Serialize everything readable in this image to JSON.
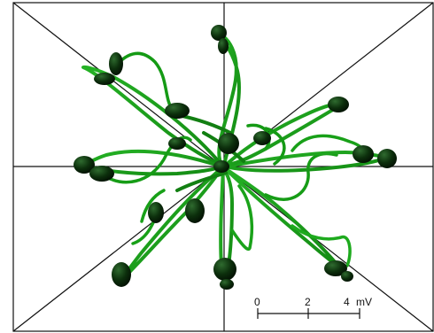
{
  "scale_bar": {
    "tick_0": "0",
    "tick_2": "2",
    "tick_4": "4",
    "unit": "mV"
  },
  "colors": {
    "background": "#ffffff",
    "frame": "#111111",
    "loop_light": "#1fa51f",
    "loop_dark": "#0b4a0b",
    "blob": "#0a2a0a"
  }
}
